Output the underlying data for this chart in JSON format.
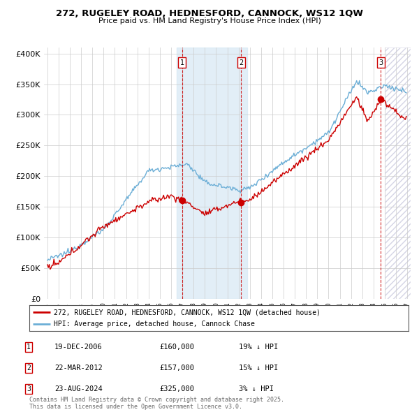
{
  "title": "272, RUGELEY ROAD, HEDNESFORD, CANNOCK, WS12 1QW",
  "subtitle": "Price paid vs. HM Land Registry's House Price Index (HPI)",
  "ylabel_ticks": [
    "£0",
    "£50K",
    "£100K",
    "£150K",
    "£200K",
    "£250K",
    "£300K",
    "£350K",
    "£400K"
  ],
  "ytick_values": [
    0,
    50000,
    100000,
    150000,
    200000,
    250000,
    300000,
    350000,
    400000
  ],
  "ylim": [
    0,
    410000
  ],
  "xlim_start": 1994.7,
  "xlim_end": 2027.3,
  "sale_year_decimals": [
    2006.97,
    2012.22,
    2024.65
  ],
  "sale_prices": [
    160000,
    157000,
    325000
  ],
  "sale_labels": [
    "1",
    "2",
    "3"
  ],
  "shade_region": [
    2006.5,
    2012.75
  ],
  "hatch_region": [
    2025.0,
    2027.3
  ],
  "legend_line1": "272, RUGELEY ROAD, HEDNESFORD, CANNOCK, WS12 1QW (detached house)",
  "legend_line2": "HPI: Average price, detached house, Cannock Chase",
  "table_rows": [
    {
      "label": "1",
      "date": "19-DEC-2006",
      "price": "£160,000",
      "hpi": "19% ↓ HPI"
    },
    {
      "label": "2",
      "date": "22-MAR-2012",
      "price": "£157,000",
      "hpi": "15% ↓ HPI"
    },
    {
      "label": "3",
      "date": "23-AUG-2024",
      "price": "£325,000",
      "hpi": "3% ↓ HPI"
    }
  ],
  "footnote": "Contains HM Land Registry data © Crown copyright and database right 2025.\nThis data is licensed under the Open Government Licence v3.0.",
  "hpi_color": "#6baed6",
  "price_color": "#cc0000",
  "sale_marker_color": "#cc0000",
  "background_color": "#ffffff",
  "grid_color": "#cccccc",
  "shade_color": "#d6e8f5",
  "hatch_color": "#aabbcc",
  "label_box_color": "#cc0000"
}
